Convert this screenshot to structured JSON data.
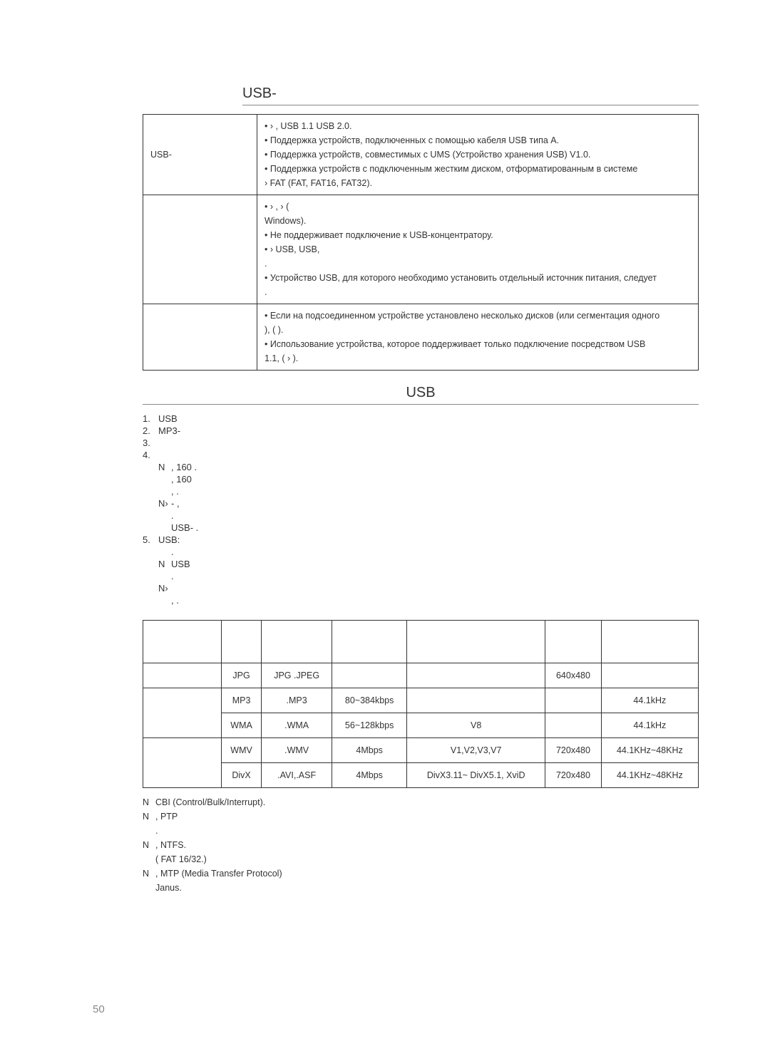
{
  "section1": {
    "title": "USB-",
    "rows": [
      {
        "label": "USB-",
        "lines": [
          "•         ›  ,            USB 1.1    USB 2.0.",
          "• Поддержка устройств, подключенных с помощью кабеля USB типа A.",
          "• Поддержка устройств, совместимых с UMS (Устройство хранения USB) V1.0.",
          "•   Поддержка устройств с подключенным жестким диском, отформатированным в системе",
          "         ›    FAT (FAT, FAT16, FAT32)."
        ]
      },
      {
        "label": "",
        "lines": [
          "•               ›  ,                                           ›            (",
          "Windows).",
          "• Не поддерживает подключение к USB-концентратору.",
          "•       ›   USB,                                          USB,",
          "             .",
          "• Устройство USB, для которого необходимо установить отдельный источник питания, следует",
          "                                                    ."
        ]
      },
      {
        "label": "",
        "lines": [
          "• Если на подсоединенном устройстве установлено несколько дисков (или сегментация одного",
          "       ),                                                          (           ).",
          "• Использование устройства, которое поддерживает только подключение посредством USB",
          "1.1,                                                      (                 ›      )."
        ]
      }
    ]
  },
  "section2": {
    "title": "USB",
    "items": [
      {
        "num": "1.",
        "text": "                USB"
      },
      {
        "num": "2.",
        "text": "MP3-"
      },
      {
        "num": "3.",
        "text": ""
      },
      {
        "num": "4.",
        "text": ""
      }
    ],
    "notes4": [
      {
        "mark": "N",
        "text": "                                          ,                 160  ."
      },
      {
        "mark": "",
        "text": "                                                  ,              160"
      },
      {
        "mark": "",
        "text": "   ,                   ."
      },
      {
        "mark": "N›",
        "text": "                              -                    ,"
      },
      {
        "mark": "",
        "text": "                                                        ."
      },
      {
        "mark": "",
        "text": "                  USB-                  ."
      }
    ],
    "item5": {
      "num": "5.",
      "text": "                            USB:"
    },
    "notes5": [
      {
        "mark": "",
        "text": "      ."
      },
      {
        "mark": "N",
        "text": "                               USB"
      },
      {
        "mark": "",
        "text": "           ."
      },
      {
        "mark": "N›",
        "text": ""
      },
      {
        "mark": "",
        "text": "      ,                   ."
      }
    ]
  },
  "formatsTable": {
    "headers": [
      "",
      "",
      "",
      "",
      "",
      "",
      ""
    ],
    "rows": [
      [
        "",
        "JPG",
        "JPG .JPEG",
        "",
        "",
        "640x480",
        ""
      ],
      [
        "",
        "MP3",
        ".MP3",
        "80~384kbps",
        "",
        "",
        "44.1kHz"
      ],
      [
        "",
        "WMA",
        ".WMA",
        "56~128kbps",
        "V8",
        "",
        "44.1kHz"
      ],
      [
        "",
        "WMV",
        ".WMV",
        "4Mbps",
        "V1,V2,V3,V7",
        "720x480",
        "44.1KHz~48KHz"
      ],
      [
        "",
        "DivX",
        ".AVI,.ASF",
        "4Mbps",
        "DivX3.11~ DivX5.1, XviD",
        "720x480",
        "44.1KHz~48KHz"
      ]
    ]
  },
  "footnotes": [
    {
      "mark": "N",
      "text": "               CBI (Control/Bulk/Interrupt)."
    },
    {
      "mark": "N",
      "text": "                  ,                         PTP"
    },
    {
      "mark": "",
      "text": "                                                     ."
    },
    {
      "mark": "N",
      "text": "                  ,                                       NTFS."
    },
    {
      "mark": "",
      "text": "    (                                   FAT 16/32.)"
    },
    {
      "mark": "N",
      "text": "                  ,                         MTP (Media Transfer Protocol)"
    },
    {
      "mark": "",
      "text": "                              Janus."
    }
  ],
  "pageNumber": "50",
  "colors": {
    "text": "#333333",
    "border": "#333333",
    "pagenum": "#888888"
  }
}
